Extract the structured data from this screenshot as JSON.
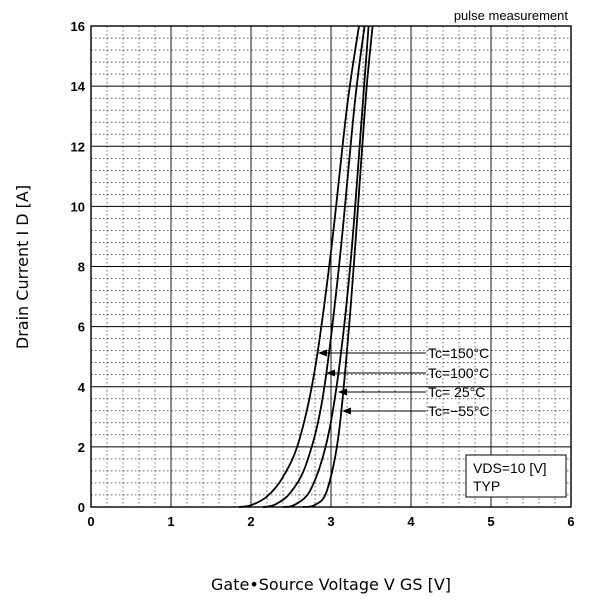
{
  "chart_data": {
    "type": "line",
    "title": "",
    "note": "pulse measurement",
    "xlabel": "Gate•Source Voltage  V GS [V]",
    "ylabel": "Drain Current  I D [A]",
    "xlim": [
      0,
      6
    ],
    "ylim": [
      0,
      16
    ],
    "xticks": [
      "0",
      "1",
      "2",
      "3",
      "4",
      "5",
      "6"
    ],
    "yticks": [
      "0",
      "2",
      "4",
      "6",
      "8",
      "10",
      "12",
      "14",
      "16"
    ],
    "grid": true,
    "legend_box": {
      "line1": "VDS=10 [V]",
      "line2": "TYP"
    },
    "series": [
      {
        "name": "Tc=150°C",
        "x": [
          1.85,
          2.0,
          2.2,
          2.4,
          2.6,
          2.8,
          3.0,
          3.2,
          3.35
        ],
        "y": [
          0.0,
          0.06,
          0.35,
          1.0,
          2.2,
          4.6,
          8.5,
          13.3,
          16.0
        ],
        "arrow_point": [
          2.8,
          4.9
        ]
      },
      {
        "name": "Tc=100°C",
        "x": [
          2.15,
          2.3,
          2.5,
          2.7,
          2.9,
          3.1,
          3.3,
          3.42
        ],
        "y": [
          0.0,
          0.08,
          0.5,
          1.5,
          3.7,
          8.0,
          13.5,
          16.0
        ],
        "arrow_point": [
          2.9,
          4.3
        ]
      },
      {
        "name": "Tc= 25°C",
        "x": [
          2.4,
          2.55,
          2.75,
          2.95,
          3.1,
          3.25,
          3.38,
          3.47
        ],
        "y": [
          0.0,
          0.08,
          0.6,
          2.2,
          4.6,
          8.3,
          12.8,
          16.0
        ],
        "arrow_point": [
          3.05,
          3.7
        ]
      },
      {
        "name": "Tc=−55°C",
        "x": [
          2.65,
          2.8,
          2.95,
          3.1,
          3.25,
          3.38,
          3.45,
          3.52
        ],
        "y": [
          0.0,
          0.07,
          0.55,
          2.5,
          6.8,
          11.6,
          14.1,
          16.0
        ],
        "arrow_point": [
          3.1,
          3.15
        ]
      }
    ]
  }
}
